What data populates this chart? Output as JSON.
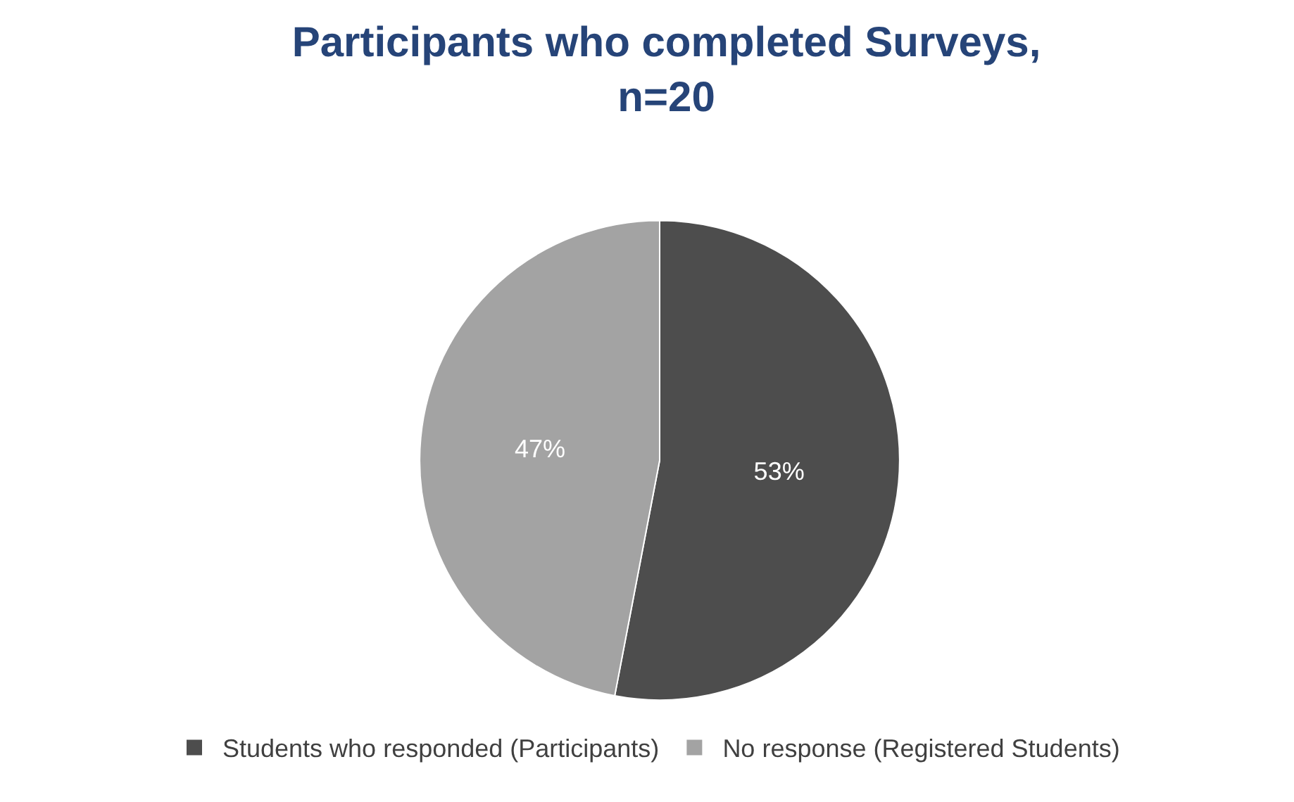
{
  "chart_data": {
    "type": "pie",
    "title": "Participants who completed Surveys,\nn=20",
    "categories": [
      "Students who responded (Participants)",
      "No response (Registered Students)"
    ],
    "values": [
      53,
      47
    ],
    "colors": [
      "#4d4d4d",
      "#a3a3a3"
    ],
    "value_labels": [
      "53%",
      "47%"
    ],
    "legend": "bottom"
  }
}
